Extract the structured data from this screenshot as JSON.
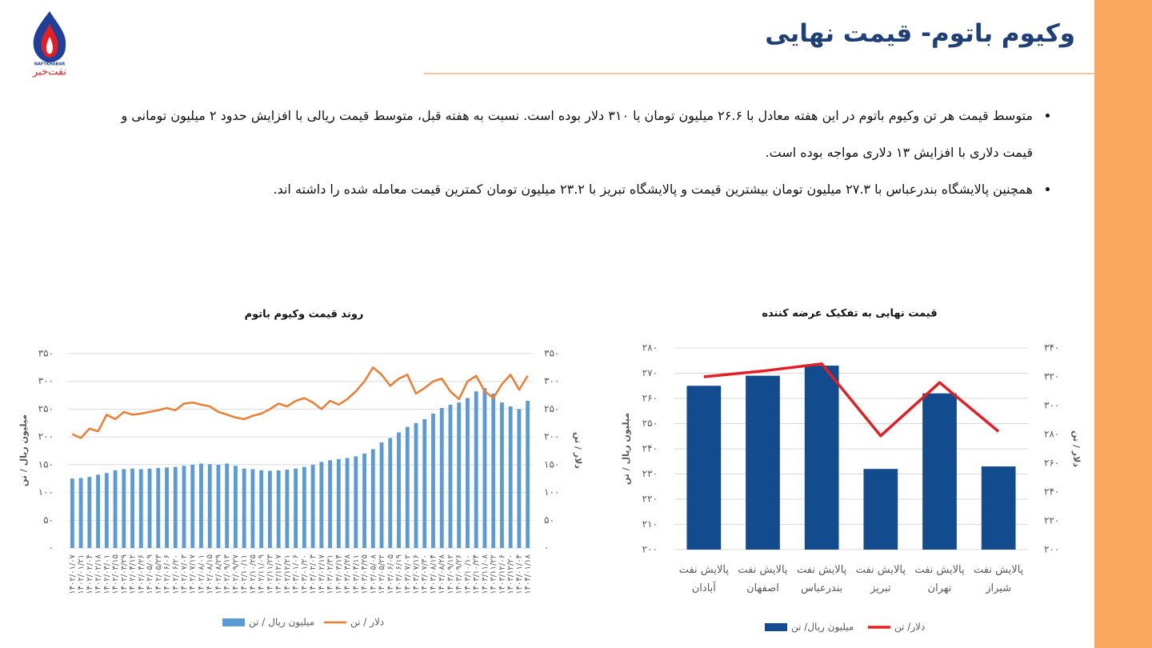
{
  "logo": {
    "latin": "NAFTKHABAR",
    "persian": "نفت‌خبر"
  },
  "header": {
    "title": "وکیوم باتوم- قیمت نهایی"
  },
  "bullets": [
    "متوسط قیمت هر تن وکیوم باتوم در این هفته معادل با ۲۶.۶ میلیون تومان یا ۳۱۰ دلار بوده است. نسبت به هفته قبل، متوسط قیمت ریالی با افزایش حدود ۲ میلیون تومانی و قیمت دلاری با افزایش ۱۳ دلاری مواجه بوده است.",
    "همچنین پالایشگاه بندرعباس با ۲۷.۳ میلیون تومان بیشترین قیمت و پالایشگاه تبریز با ۲۳.۲ میلیون تومان کمترین قیمت معامله شده را داشته اند."
  ],
  "chart_data": [
    {
      "type": "bar",
      "title": "روند قیمت وکیوم باتوم",
      "y_label": "میلیون ریال / تن",
      "y2_label": "دلار / تن",
      "categories": [
        "۱۴۰۲/۰۱/۰۷",
        "۱۴۰۲/۰۱/۲۱",
        "۱۴۰۲/۰۲/۰۴",
        "۱۴۰۲/۰۲/۱۸",
        "۱۴۰۲/۰۳/۰۱",
        "۱۴۰۲/۰۳/۱۵",
        "۱۴۰۲/۰۳/۲۹",
        "۱۴۰۲/۰۴/۱۲",
        "۱۴۰۲/۰۴/۲۶",
        "۱۴۰۲/۰۵/۰۹",
        "۱۴۰۲/۰۵/۲۳",
        "۱۴۰۲/۰۶/۰۶",
        "۱۴۰۲/۰۶/۲۰",
        "۱۴۰۲/۰۷/۰۳",
        "۱۴۰۲/۰۷/۱۷",
        "۱۴۰۲/۰۸/۰۱",
        "۱۴۰۲/۰۸/۱۵",
        "۱۴۰۲/۰۸/۲۹",
        "۱۴۰۲/۰۹/۱۳",
        "۱۴۰۲/۰۹/۲۷",
        "۱۴۰۲/۱۰/۱۱",
        "۱۴۰۲/۱۰/۲۵",
        "۱۴۰۲/۱۱/۰۹",
        "۱۴۰۲/۱۱/۲۳",
        "۱۴۰۲/۱۲/۰۷",
        "۱۴۰۲/۱۲/۲۱",
        "۱۴۰۳/۰۱/۰۶",
        "۱۴۰۳/۰۱/۲۰",
        "۱۴۰۳/۰۲/۰۳",
        "۱۴۰۳/۰۲/۱۷",
        "۱۴۰۳/۰۲/۳۱",
        "۱۴۰۳/۰۳/۱۴",
        "۱۴۰۳/۰۳/۲۸",
        "۱۴۰۳/۰۴/۱۱",
        "۱۴۰۳/۰۴/۲۵",
        "۱۴۰۳/۰۵/۰۸",
        "۱۴۰۳/۰۵/۲۲",
        "۱۴۰۳/۰۶/۰۵",
        "۱۴۰۳/۰۶/۱۹",
        "۱۴۰۳/۰۷/۰۲",
        "۱۴۰۳/۰۷/۱۶",
        "۱۴۰۳/۰۷/۳۰",
        "۱۴۰۳/۰۸/۱۴",
        "۱۴۰۳/۰۸/۲۸",
        "۱۴۰۳/۰۹/۱۲",
        "۱۴۰۳/۰۹/۲۶",
        "۱۴۰۳/۱۰/۱۰",
        "۱۴۰۳/۱۰/۲۴",
        "۱۴۰۳/۱۱/۰۸",
        "۱۴۰۳/۱۱/۲۲",
        "۱۴۰۳/۱۲/۰۶",
        "۱۴۰۳/۱۲/۲۰",
        "۱۴۰۴/۰۱/۰۴",
        "۱۴۰۴/۰۱/۱۸"
      ],
      "series": [
        {
          "name": "میلیون ریال / تن",
          "type": "bar",
          "color": "#5b9bd5",
          "values": [
            125,
            126,
            128,
            132,
            135,
            140,
            142,
            143,
            142,
            143,
            144,
            145,
            146,
            148,
            150,
            152,
            151,
            150,
            152,
            148,
            143,
            142,
            140,
            139,
            140,
            141,
            143,
            146,
            150,
            155,
            158,
            160,
            162,
            165,
            170,
            178,
            190,
            198,
            208,
            218,
            225,
            232,
            242,
            252,
            258,
            262,
            270,
            282,
            288,
            278,
            262,
            255,
            250,
            265
          ]
        },
        {
          "name": "دلار / تن",
          "type": "line",
          "axis": "y2",
          "color": "#ed7d31",
          "values": [
            205,
            198,
            215,
            210,
            240,
            232,
            245,
            240,
            242,
            245,
            248,
            252,
            248,
            260,
            262,
            258,
            255,
            245,
            240,
            235,
            232,
            238,
            242,
            250,
            260,
            255,
            265,
            270,
            262,
            250,
            265,
            258,
            268,
            282,
            300,
            325,
            312,
            292,
            305,
            312,
            278,
            288,
            300,
            305,
            282,
            268,
            300,
            310,
            282,
            270,
            295,
            312,
            285,
            310
          ]
        }
      ],
      "ylim": [
        0,
        350
      ],
      "yticks": [
        {
          "value": 0,
          "label": "۰"
        },
        {
          "value": 50,
          "label": "۵۰"
        },
        {
          "value": 100,
          "label": "۱۰۰"
        },
        {
          "value": 150,
          "label": "۱۵۰"
        },
        {
          "value": 200,
          "label": "۲۰۰"
        },
        {
          "value": 250,
          "label": "۲۵۰"
        },
        {
          "value": 300,
          "label": "۳۰۰"
        },
        {
          "value": 350,
          "label": "۳۵۰"
        }
      ],
      "y2lim": [
        0,
        350
      ],
      "y2ticks": [
        {
          "value": 0,
          "label": "۰"
        },
        {
          "value": 50,
          "label": "۵۰"
        },
        {
          "value": 100,
          "label": "۱۰۰"
        },
        {
          "value": 150,
          "label": "۱۵۰"
        },
        {
          "value": 200,
          "label": "۲۰۰"
        },
        {
          "value": 250,
          "label": "۲۵۰"
        },
        {
          "value": 300,
          "label": "۳۰۰"
        },
        {
          "value": 350,
          "label": "۳۵۰"
        }
      ],
      "grid": true,
      "legend": "bottom"
    },
    {
      "type": "bar",
      "title": "قیمت نهایی به تفکیک عرضه کننده",
      "y_label": "میلیون ریال / تن",
      "y2_label": "دلار / تن",
      "categories": [
        "پالایش نفت آبادان",
        "پالایش نفت اصفهان",
        "پالایش نفت بندرعباس",
        "پالایش نفت تبریز",
        "پالایش نفت تهران",
        "پالایش نفت شیراز"
      ],
      "series": [
        {
          "name": "میلیون ریال/ تن",
          "type": "bar",
          "color": "#134b8f",
          "values": [
            265,
            269,
            273,
            232,
            262,
            233
          ]
        },
        {
          "name": "دلار/ تن",
          "type": "line",
          "axis": "y2",
          "color": "#e31e24",
          "values": [
            320,
            324,
            329,
            279,
            316,
            282
          ]
        }
      ],
      "ylim": [
        200,
        280
      ],
      "yticks": [
        {
          "value": 200,
          "label": "۲۰۰"
        },
        {
          "value": 210,
          "label": "۲۱۰"
        },
        {
          "value": 220,
          "label": "۲۲۰"
        },
        {
          "value": 230,
          "label": "۲۳۰"
        },
        {
          "value": 240,
          "label": "۲۴۰"
        },
        {
          "value": 250,
          "label": "۲۵۰"
        },
        {
          "value": 260,
          "label": "۲۶۰"
        },
        {
          "value": 270,
          "label": "۲۷۰"
        },
        {
          "value": 280,
          "label": "۲۸۰"
        }
      ],
      "y2lim": [
        200,
        340
      ],
      "y2ticks": [
        {
          "value": 200,
          "label": "۲۰۰"
        },
        {
          "value": 220,
          "label": "۲۲۰"
        },
        {
          "value": 240,
          "label": "۲۴۰"
        },
        {
          "value": 260,
          "label": "۲۶۰"
        },
        {
          "value": 280,
          "label": "۲۸۰"
        },
        {
          "value": 300,
          "label": "۳۰۰"
        },
        {
          "value": 320,
          "label": "۳۲۰"
        },
        {
          "value": 340,
          "label": "۳۴۰"
        }
      ],
      "grid": true,
      "legend": "bottom"
    }
  ]
}
